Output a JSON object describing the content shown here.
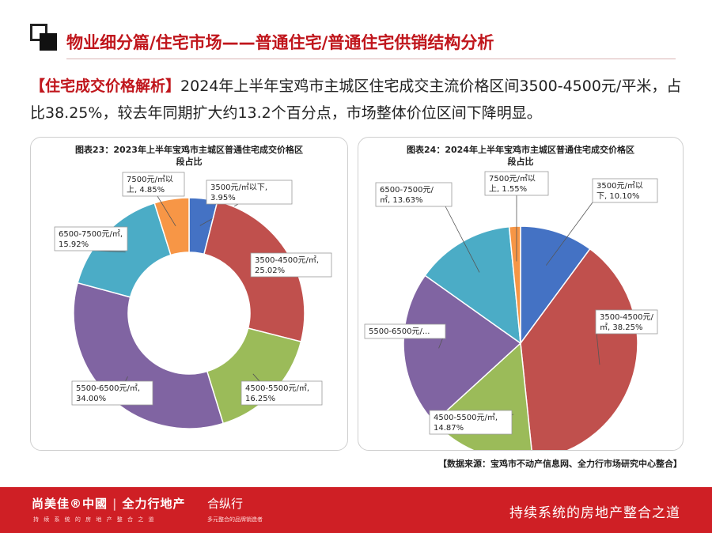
{
  "header": {
    "title": "物业细分篇/住宅市场——普通住宅/普通住宅供销结构分析"
  },
  "summary": {
    "tag": "【住宅成交价格解析】",
    "text": "2024年上半年宝鸡市主城区住宅成交主流价格区间3500-4500元/平米，占比38.25%，较去年同期扩大约13.2个百分点，市场整体价位区间下降明显。"
  },
  "colors": {
    "accent": "#c0161c",
    "footer": "#cf1f25",
    "blue": "#4472c4",
    "red": "#c0504d",
    "green": "#9bbb59",
    "purple": "#8064a2",
    "cyan": "#4bacc6",
    "orange": "#f79646"
  },
  "chart_data": [
    {
      "type": "pie",
      "donut": true,
      "title": "图表23：2023年上半年宝鸡市主城区普通住宅成交价格区段占比",
      "title_lines": [
        "图表23：2023年上半年宝鸡市主城区普通住宅成交价格区",
        "段占比"
      ],
      "categories": [
        "3500元/㎡以下",
        "3500-4500元/㎡",
        "4500-5500元/㎡",
        "5500-6500元/㎡",
        "6500-7500元/㎡",
        "7500元/㎡以上"
      ],
      "values": [
        3.95,
        25.02,
        16.25,
        34.0,
        15.92,
        4.85
      ],
      "colors": [
        "#4472c4",
        "#c0504d",
        "#9bbb59",
        "#8064a2",
        "#4bacc6",
        "#f79646"
      ],
      "labels": [
        [
          "3500元/㎡以下,",
          "3.95%"
        ],
        [
          "3500-4500元/㎡,",
          "25.02%"
        ],
        [
          "4500-5500元/㎡,",
          "16.25%"
        ],
        [
          "5500-6500元/㎡,",
          "34.00%"
        ],
        [
          "6500-7500元/㎡,",
          "15.92%"
        ],
        [
          "7500元/㎡以",
          "上, 4.85%"
        ]
      ]
    },
    {
      "type": "pie",
      "donut": true,
      "title": "图表24：2024年上半年宝鸡市主城区普通住宅成交价格区段占比",
      "title_lines": [
        "图表24：2024年上半年宝鸡市主城区普通住宅成交价格区",
        "段占比"
      ],
      "categories": [
        "3500元/㎡以下",
        "3500-4500元/㎡",
        "4500-5500元/㎡",
        "5500-6500元/㎡",
        "6500-7500元/㎡",
        "7500元/㎡以上"
      ],
      "values": [
        10.1,
        38.25,
        14.87,
        21.6,
        13.63,
        1.55
      ],
      "colors": [
        "#4472c4",
        "#c0504d",
        "#9bbb59",
        "#8064a2",
        "#4bacc6",
        "#f79646"
      ],
      "labels": [
        [
          "3500元/㎡以",
          "下, 10.10%"
        ],
        [
          "3500-4500元/",
          "㎡, 38.25%"
        ],
        [
          "4500-5500元/㎡,",
          "14.87%"
        ],
        [
          "5500-6500元/..."
        ],
        [
          "6500-7500元/",
          "㎡, 13.63%"
        ],
        [
          "7500元/㎡以",
          "上, 1.55%"
        ]
      ]
    }
  ],
  "source": "【数据来源：宝鸡市不动产信息网、全力行市场研究中心整合】",
  "footer": {
    "brand": "尚美佳®中國",
    "brand_b": "全力行地产",
    "slogan": "持 续 系 统 的 房 地 产 整 合 之 道",
    "brand2": "合纵行",
    "slogan2": "多元整合的品牌销造者",
    "tagline": "持续系统的房地产整合之道"
  }
}
